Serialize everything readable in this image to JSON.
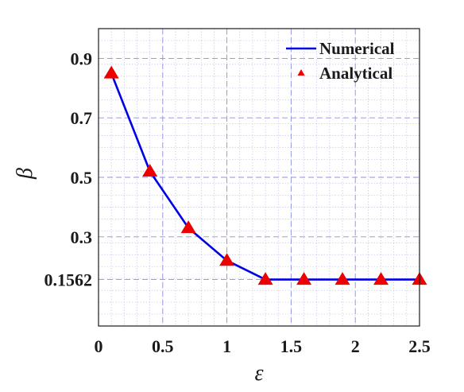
{
  "chart_data": {
    "type": "line",
    "xlabel": "ε",
    "ylabel": "β",
    "xlim": [
      0,
      2.5
    ],
    "ylim": [
      0,
      1.0
    ],
    "xticks": [
      0,
      0.5,
      1,
      1.5,
      2,
      2.5
    ],
    "xtick_labels": [
      "0",
      "0.5",
      "1",
      "1.5",
      "2",
      "2.5"
    ],
    "yticks": [
      0.1562,
      0.3,
      0.5,
      0.7,
      0.9
    ],
    "ytick_labels": [
      "0.1562",
      "0.3",
      "0.5",
      "0.7",
      "0.9"
    ],
    "minor_x_step": 0.1,
    "minor_y_step": 0.04,
    "grid": true,
    "legend_position": "top-right",
    "series": [
      {
        "name": "Numerical",
        "kind": "line",
        "color": "#0000e6",
        "x": [
          0.1,
          0.4,
          0.7,
          1.0,
          1.3,
          1.6,
          1.9,
          2.2,
          2.5
        ],
        "y": [
          0.85,
          0.52,
          0.33,
          0.22,
          0.1562,
          0.1562,
          0.1562,
          0.1562,
          0.1562
        ]
      },
      {
        "name": "Analytical",
        "kind": "marker",
        "marker": "triangle",
        "color": "#ee0000",
        "x": [
          0.1,
          0.4,
          0.7,
          1.0,
          1.3,
          1.6,
          1.9,
          2.2,
          2.5
        ],
        "y": [
          0.85,
          0.52,
          0.33,
          0.22,
          0.1562,
          0.1562,
          0.1562,
          0.1562,
          0.1562
        ]
      }
    ]
  }
}
